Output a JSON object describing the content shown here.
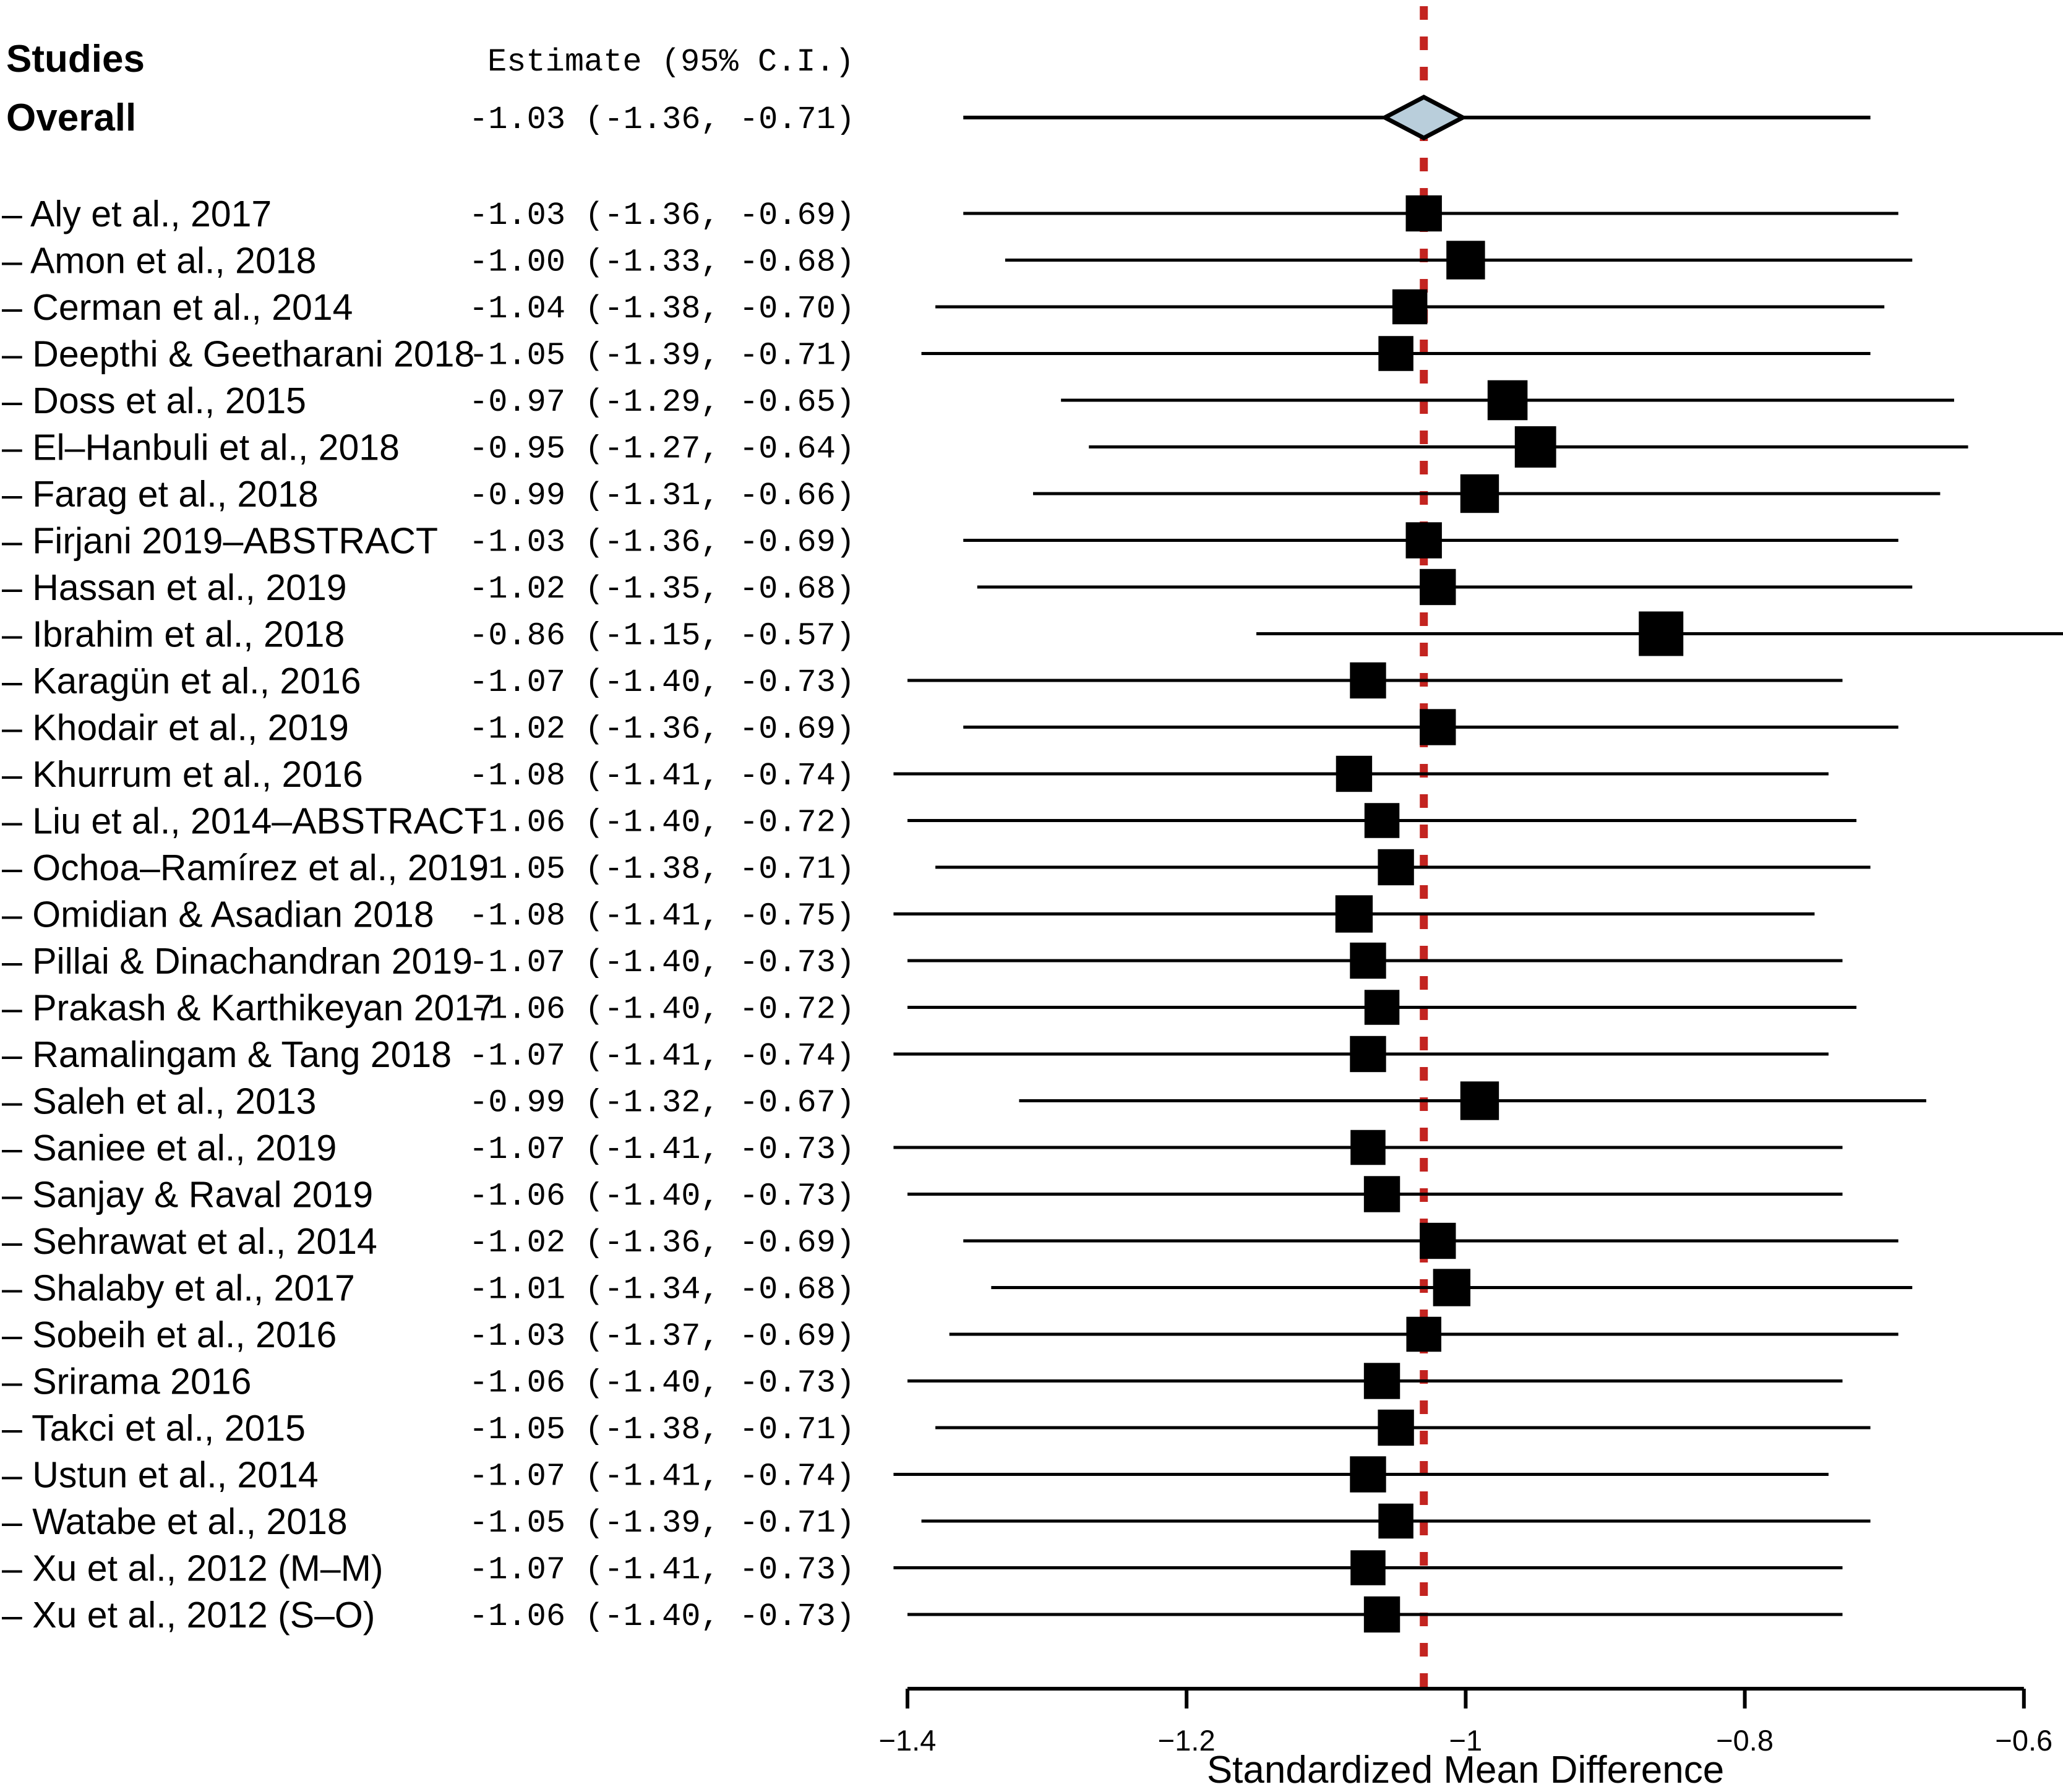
{
  "chart_data": {
    "type": "forest",
    "columns": {
      "studies": "Studies",
      "estimate": "Estimate (95% C.I.)"
    },
    "overall": {
      "label": "Overall",
      "estimate_label": "-1.03 (-1.36, -0.71)",
      "est": -1.03,
      "lo": -1.36,
      "hi": -0.71
    },
    "studies": [
      {
        "label": "– Aly et al., 2017",
        "estimate_label": "-1.03 (-1.36, -0.69)",
        "est": -1.03,
        "lo": -1.36,
        "hi": -0.69
      },
      {
        "label": "– Amon et al., 2018",
        "estimate_label": "-1.00 (-1.33, -0.68)",
        "est": -1.0,
        "lo": -1.33,
        "hi": -0.68
      },
      {
        "label": "– Cerman et al., 2014",
        "estimate_label": "-1.04 (-1.38, -0.70)",
        "est": -1.04,
        "lo": -1.38,
        "hi": -0.7
      },
      {
        "label": "– Deepthi & Geetharani 2018",
        "estimate_label": "-1.05 (-1.39, -0.71)",
        "est": -1.05,
        "lo": -1.39,
        "hi": -0.71
      },
      {
        "label": "– Doss et al., 2015",
        "estimate_label": "-0.97 (-1.29, -0.65)",
        "est": -0.97,
        "lo": -1.29,
        "hi": -0.65
      },
      {
        "label": "– El–Hanbuli et al., 2018",
        "estimate_label": "-0.95 (-1.27, -0.64)",
        "est": -0.95,
        "lo": -1.27,
        "hi": -0.64
      },
      {
        "label": "– Farag et al., 2018",
        "estimate_label": "-0.99 (-1.31, -0.66)",
        "est": -0.99,
        "lo": -1.31,
        "hi": -0.66
      },
      {
        "label": "– Firjani 2019–ABSTRACT",
        "estimate_label": "-1.03 (-1.36, -0.69)",
        "est": -1.03,
        "lo": -1.36,
        "hi": -0.69
      },
      {
        "label": "– Hassan et al., 2019",
        "estimate_label": "-1.02 (-1.35, -0.68)",
        "est": -1.02,
        "lo": -1.35,
        "hi": -0.68
      },
      {
        "label": "– Ibrahim et al., 2018",
        "estimate_label": "-0.86 (-1.15, -0.57)",
        "est": -0.86,
        "lo": -1.15,
        "hi": -0.57
      },
      {
        "label": "– Karagün et al., 2016",
        "estimate_label": "-1.07 (-1.40, -0.73)",
        "est": -1.07,
        "lo": -1.4,
        "hi": -0.73
      },
      {
        "label": "– Khodair et al., 2019",
        "estimate_label": "-1.02 (-1.36, -0.69)",
        "est": -1.02,
        "lo": -1.36,
        "hi": -0.69
      },
      {
        "label": "– Khurrum et al., 2016",
        "estimate_label": "-1.08 (-1.41, -0.74)",
        "est": -1.08,
        "lo": -1.41,
        "hi": -0.74
      },
      {
        "label": "– Liu et al., 2014–ABSTRACT",
        "estimate_label": "-1.06 (-1.40, -0.72)",
        "est": -1.06,
        "lo": -1.4,
        "hi": -0.72
      },
      {
        "label": "– Ochoa–Ramírez et al., 2019",
        "estimate_label": "-1.05 (-1.38, -0.71)",
        "est": -1.05,
        "lo": -1.38,
        "hi": -0.71
      },
      {
        "label": "– Omidian & Asadian 2018",
        "estimate_label": "-1.08 (-1.41, -0.75)",
        "est": -1.08,
        "lo": -1.41,
        "hi": -0.75
      },
      {
        "label": "– Pillai & Dinachandran 2019",
        "estimate_label": "-1.07 (-1.40, -0.73)",
        "est": -1.07,
        "lo": -1.4,
        "hi": -0.73
      },
      {
        "label": "– Prakash & Karthikeyan 2017",
        "estimate_label": "-1.06 (-1.40, -0.72)",
        "est": -1.06,
        "lo": -1.4,
        "hi": -0.72
      },
      {
        "label": "– Ramalingam & Tang 2018",
        "estimate_label": "-1.07 (-1.41, -0.74)",
        "est": -1.07,
        "lo": -1.41,
        "hi": -0.74
      },
      {
        "label": "– Saleh et al., 2013",
        "estimate_label": "-0.99 (-1.32, -0.67)",
        "est": -0.99,
        "lo": -1.32,
        "hi": -0.67
      },
      {
        "label": "– Saniee et al., 2019",
        "estimate_label": "-1.07 (-1.41, -0.73)",
        "est": -1.07,
        "lo": -1.41,
        "hi": -0.73
      },
      {
        "label": "– Sanjay & Raval 2019",
        "estimate_label": "-1.06 (-1.40, -0.73)",
        "est": -1.06,
        "lo": -1.4,
        "hi": -0.73
      },
      {
        "label": "– Sehrawat et al., 2014",
        "estimate_label": "-1.02 (-1.36, -0.69)",
        "est": -1.02,
        "lo": -1.36,
        "hi": -0.69
      },
      {
        "label": "– Shalaby et al., 2017",
        "estimate_label": "-1.01 (-1.34, -0.68)",
        "est": -1.01,
        "lo": -1.34,
        "hi": -0.68
      },
      {
        "label": "– Sobeih et al., 2016",
        "estimate_label": "-1.03 (-1.37, -0.69)",
        "est": -1.03,
        "lo": -1.37,
        "hi": -0.69
      },
      {
        "label": "– Srirama 2016",
        "estimate_label": "-1.06 (-1.40, -0.73)",
        "est": -1.06,
        "lo": -1.4,
        "hi": -0.73
      },
      {
        "label": "– Takci et al., 2015",
        "estimate_label": "-1.05 (-1.38, -0.71)",
        "est": -1.05,
        "lo": -1.38,
        "hi": -0.71
      },
      {
        "label": "– Ustun et al., 2014",
        "estimate_label": "-1.07 (-1.41, -0.74)",
        "est": -1.07,
        "lo": -1.41,
        "hi": -0.74
      },
      {
        "label": "– Watabe et al., 2018",
        "estimate_label": "-1.05 (-1.39, -0.71)",
        "est": -1.05,
        "lo": -1.39,
        "hi": -0.71
      },
      {
        "label": "– Xu et al., 2012 (M–M)",
        "estimate_label": "-1.07 (-1.41, -0.73)",
        "est": -1.07,
        "lo": -1.41,
        "hi": -0.73
      },
      {
        "label": "– Xu et al., 2012 (S–O)",
        "estimate_label": "-1.06 (-1.40, -0.73)",
        "est": -1.06,
        "lo": -1.4,
        "hi": -0.73
      }
    ],
    "x_axis": {
      "label": "Standardized Mean Difference",
      "xlim": [
        -1.4,
        -0.6
      ],
      "ticks": [
        {
          "value": -1.4,
          "label": "−1.4"
        },
        {
          "value": -1.2,
          "label": "−1.2"
        },
        {
          "value": -1.0,
          "label": "−1"
        },
        {
          "value": -0.8,
          "label": "−0.8"
        },
        {
          "value": -0.6,
          "label": "−0.6"
        }
      ]
    },
    "reference_line_value": -1.03,
    "colors": {
      "marker": "#000000",
      "ci_line": "#000000",
      "axis": "#000000",
      "reference_line": "#C32420",
      "diamond_fill": "#B9CEDB",
      "diamond_stroke": "#000000",
      "text": "#000000",
      "background": "#FFFFFF"
    }
  }
}
